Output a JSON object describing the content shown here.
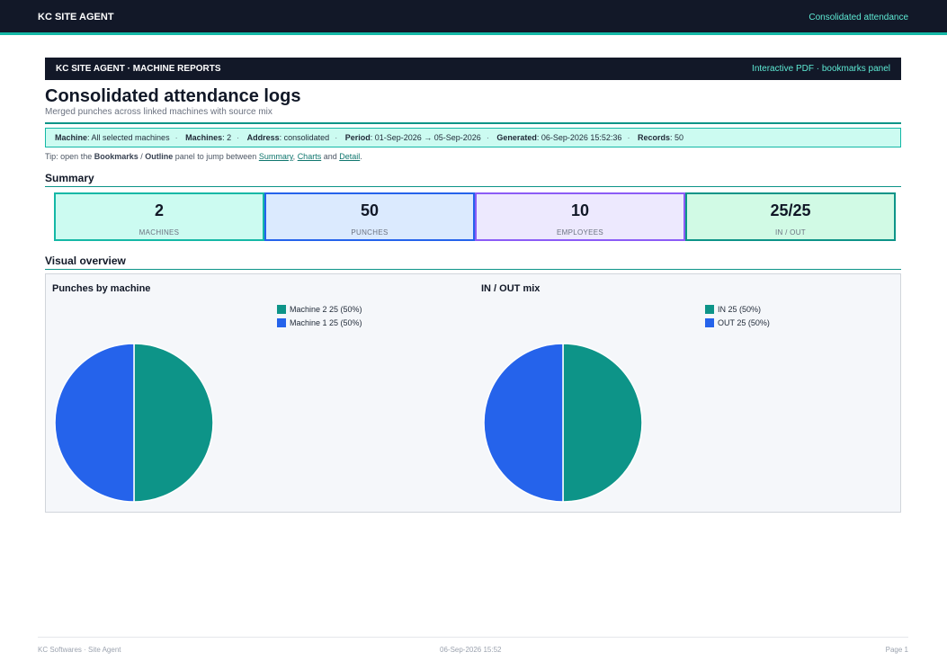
{
  "topbar": {
    "brand": "KC SITE AGENT",
    "right": "Consolidated attendance"
  },
  "report_bar": {
    "left": "KC SITE AGENT · MACHINE REPORTS",
    "right": "Interactive PDF · bookmarks panel"
  },
  "title": "Consolidated attendance logs",
  "subtitle": "Merged punches across linked machines with source mix",
  "meta": [
    {
      "key": "Machine",
      "value": ": All selected machines"
    },
    {
      "key": "Machines",
      "value": ": 2"
    },
    {
      "key": "Address",
      "value": ": consolidated"
    },
    {
      "key": "Period",
      "value": ": 01-Sep-2026 → 05-Sep-2026"
    },
    {
      "key": "Generated",
      "value": ": 06-Sep-2026 15:52:36"
    },
    {
      "key": "Records",
      "value": ": 50"
    }
  ],
  "tip": {
    "prefix": "Tip: open the ",
    "bookmarks": "Bookmarks",
    "slash": " / ",
    "outline": "Outline",
    "middle": " panel to jump between ",
    "link_summary": "Summary",
    "comma": ", ",
    "link_charts": "Charts",
    "and": " and ",
    "link_detail": "Detail",
    "end": "."
  },
  "summary_heading": "Summary",
  "cards": [
    {
      "value": "2",
      "label": "MACHINES",
      "bg": "#ccfbf1",
      "border": "#14b8a6"
    },
    {
      "value": "50",
      "label": "PUNCHES",
      "bg": "#dbeafe",
      "border": "#2563eb"
    },
    {
      "value": "10",
      "label": "EMPLOYEES",
      "bg": "#ede9fe",
      "border": "#8b5cf6"
    },
    {
      "value": "25/25",
      "label": "IN / OUT",
      "bg": "#d1fae5",
      "border": "#0d9488"
    }
  ],
  "visual_heading": "Visual overview",
  "chart_data": [
    {
      "type": "pie",
      "title": "Punches by machine",
      "slices": [
        {
          "label": "Machine 2",
          "value": 25,
          "text": "Machine 2  25 (50%)",
          "color": "#0d9488"
        },
        {
          "label": "Machine 1",
          "value": 25,
          "text": "Machine 1  25 (50%)",
          "color": "#2563eb"
        }
      ]
    },
    {
      "type": "pie",
      "title": "IN / OUT mix",
      "slices": [
        {
          "label": "IN",
          "value": 25,
          "text": "IN  25 (50%)",
          "color": "#0d9488"
        },
        {
          "label": "OUT",
          "value": 25,
          "text": "OUT  25 (50%)",
          "color": "#2563eb"
        }
      ]
    }
  ],
  "footer": {
    "left": "KC Softwares · Site Agent",
    "center": "06-Sep-2026 15:52",
    "right": "Page 1"
  }
}
